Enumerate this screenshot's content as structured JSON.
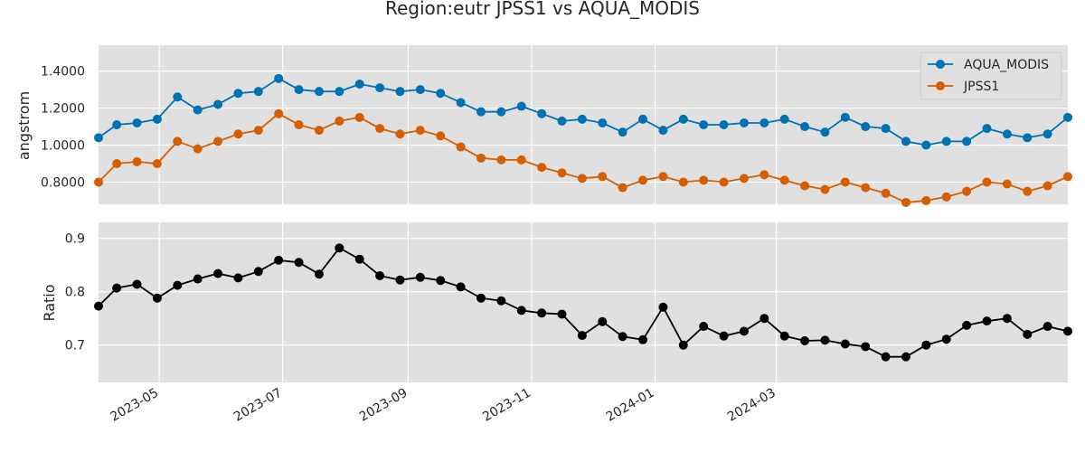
{
  "chart_data": {
    "type": "line",
    "title": "Region:eutr JPSS1 vs AQUA_MODIS",
    "dates": [
      "2023-04-01",
      "2023-04-10",
      "2023-04-20",
      "2023-04-30",
      "2023-05-10",
      "2023-05-20",
      "2023-05-30",
      "2023-06-09",
      "2023-06-19",
      "2023-06-29",
      "2023-07-09",
      "2023-07-19",
      "2023-07-29",
      "2023-08-08",
      "2023-08-18",
      "2023-08-28",
      "2023-09-07",
      "2023-09-17",
      "2023-09-27",
      "2023-10-07",
      "2023-10-17",
      "2023-10-27",
      "2023-11-06",
      "2023-11-16",
      "2023-11-26",
      "2023-12-06",
      "2023-12-16",
      "2023-12-26",
      "2024-01-05",
      "2024-01-15",
      "2024-01-25",
      "2024-02-04",
      "2024-02-14",
      "2024-02-24",
      "2024-03-05",
      "2024-03-15",
      "2024-03-25",
      "2024-04-04",
      "2024-04-14",
      "2024-04-24",
      "2024-05-04",
      "2024-05-14",
      "2024-05-24",
      "2024-06-03",
      "2024-06-13",
      "2024-06-23",
      "2024-07-03",
      "2024-07-13",
      "2024-07-23"
    ],
    "xticks": [
      "2023-05",
      "2023-07",
      "2023-09",
      "2023-11",
      "2024-01",
      "2024-03"
    ],
    "top": {
      "ylabel": "angstrom",
      "yticks": [
        "0.8000",
        "1.0000",
        "1.2000",
        "1.4000"
      ],
      "ylim": [
        0.68,
        1.54
      ],
      "legend_position": "top-right",
      "series": [
        {
          "name": "AQUA_MODIS",
          "color": "#0072B2",
          "values": [
            1.04,
            1.11,
            1.12,
            1.14,
            1.26,
            1.19,
            1.22,
            1.28,
            1.29,
            1.36,
            1.3,
            1.29,
            1.29,
            1.33,
            1.31,
            1.29,
            1.3,
            1.28,
            1.23,
            1.18,
            1.18,
            1.21,
            1.17,
            1.13,
            1.14,
            1.12,
            1.07,
            1.14,
            1.08,
            1.14,
            1.11,
            1.11,
            1.12,
            1.12,
            1.14,
            1.1,
            1.07,
            1.15,
            1.1,
            1.09,
            1.02,
            1.0,
            1.02,
            1.02,
            1.09,
            1.06,
            1.04,
            1.06,
            1.15
          ]
        },
        {
          "name": "JPSS1",
          "color": "#D55E00",
          "values": [
            0.8,
            0.9,
            0.91,
            0.9,
            1.02,
            0.98,
            1.02,
            1.06,
            1.08,
            1.17,
            1.11,
            1.08,
            1.13,
            1.15,
            1.09,
            1.06,
            1.08,
            1.05,
            0.99,
            0.93,
            0.92,
            0.92,
            0.88,
            0.85,
            0.82,
            0.83,
            0.77,
            0.81,
            0.83,
            0.8,
            0.81,
            0.8,
            0.82,
            0.84,
            0.81,
            0.78,
            0.76,
            0.8,
            0.77,
            0.74,
            0.69,
            0.7,
            0.72,
            0.75,
            0.8,
            0.79,
            0.75,
            0.78,
            0.83
          ]
        }
      ]
    },
    "bottom": {
      "ylabel": "Ratio",
      "yticks": [
        "0.7",
        "0.8",
        "0.9"
      ],
      "ylim": [
        0.63,
        0.93
      ],
      "series": [
        {
          "name": "",
          "color": "#000000",
          "values": [
            0.773,
            0.807,
            0.814,
            0.788,
            0.812,
            0.824,
            0.834,
            0.826,
            0.838,
            0.859,
            0.855,
            0.833,
            0.882,
            0.861,
            0.83,
            0.822,
            0.827,
            0.821,
            0.809,
            0.788,
            0.783,
            0.765,
            0.76,
            0.758,
            0.718,
            0.744,
            0.716,
            0.71,
            0.771,
            0.7,
            0.735,
            0.717,
            0.726,
            0.75,
            0.717,
            0.708,
            0.709,
            0.702,
            0.697,
            0.678,
            0.678,
            0.7,
            0.711,
            0.737,
            0.745,
            0.75,
            0.72,
            0.735,
            0.726
          ]
        }
      ]
    }
  }
}
